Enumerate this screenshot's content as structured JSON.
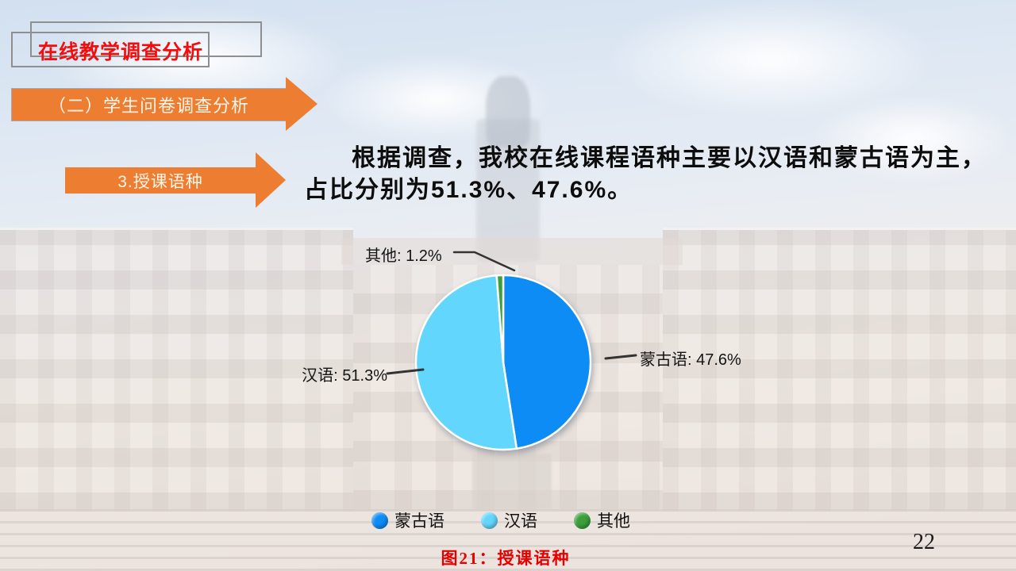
{
  "header": {
    "title": "在线教学调查分析"
  },
  "banners": {
    "section": "（二）学生问卷调查分析",
    "topic": "3.授课语种"
  },
  "body": {
    "paragraph": "根据调查，我校在线课程语种主要以汉语和蒙古语为主，\n占比分别为51.3%、47.6%。"
  },
  "chart_data": {
    "type": "pie",
    "title": "图21：授课语种",
    "direction": "clockwise",
    "start_angle_deg": 0,
    "legend_position": "bottom",
    "slices": [
      {
        "label": "蒙古语",
        "value": 47.6,
        "color": "#0e8cf5",
        "callout": "蒙古语: 47.6%"
      },
      {
        "label": "汉语",
        "value": 51.3,
        "color": "#63d6fd",
        "callout": "汉语: 51.3%"
      },
      {
        "label": "其他",
        "value": 1.2,
        "color": "#3ba03b",
        "callout": "其他: 1.2%"
      }
    ]
  },
  "colors": {
    "banner_orange": "#ed7d31",
    "title_red": "#f50d0d",
    "caption_red": "#e60000",
    "slice_stroke": "#ffffff",
    "callout_line": "#333333"
  },
  "page": {
    "number": "22"
  }
}
